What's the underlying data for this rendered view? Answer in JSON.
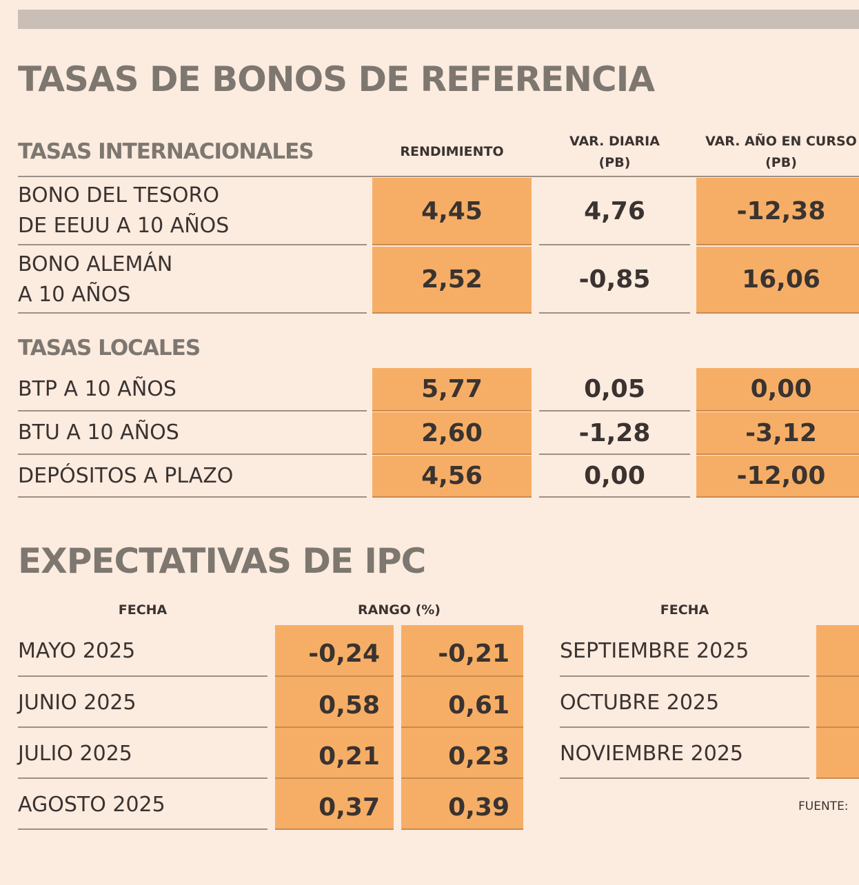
{
  "title": "TASAS DE BONOS DE REFERENCIA",
  "bonds": {
    "international_label": "TASAS INTERNACIONALES",
    "local_label": "TASAS LOCALES",
    "columns": [
      "RENDIMIENTO",
      "VAR. DIARIA\n(PB)",
      "VAR. AÑO EN CURSO\n(PB)"
    ],
    "international": [
      {
        "name": "BONO DEL TESORO\nDE EEUU A 10 AÑOS",
        "rendimiento": "4,45",
        "var_diaria": "4,76",
        "var_anio": "-12,38"
      },
      {
        "name": "BONO ALEMÁN\nA 10 AÑOS",
        "rendimiento": "2,52",
        "var_diaria": "-0,85",
        "var_anio": "16,06"
      }
    ],
    "local": [
      {
        "name": "BTP A 10 AÑOS",
        "rendimiento": "5,77",
        "var_diaria": "0,05",
        "var_anio": "0,00"
      },
      {
        "name": "BTU A 10 AÑOS",
        "rendimiento": "2,60",
        "var_diaria": "-1,28",
        "var_anio": "-3,12"
      },
      {
        "name": "DEPÓSITOS A PLAZO",
        "rendimiento": "4,56",
        "var_diaria": "0,00",
        "var_anio": "-12,00"
      }
    ]
  },
  "ipc": {
    "title": "EXPECTATIVAS DE IPC",
    "fecha_label": "FECHA",
    "rango_label": "RANGO (%)",
    "left": [
      {
        "fecha": "MAYO 2025",
        "min": "-0,24",
        "max": "-0,21"
      },
      {
        "fecha": "JUNIO 2025",
        "min": "0,58",
        "max": "0,61"
      },
      {
        "fecha": "JULIO 2025",
        "min": "0,21",
        "max": "0,23"
      },
      {
        "fecha": "AGOSTO 2025",
        "min": "0,37",
        "max": "0,39"
      }
    ],
    "right": [
      {
        "fecha": "SEPTIEMBRE 2025"
      },
      {
        "fecha": "OCTUBRE 2025"
      },
      {
        "fecha": "NOVIEMBRE 2025"
      }
    ],
    "source": "FUENTE:"
  }
}
